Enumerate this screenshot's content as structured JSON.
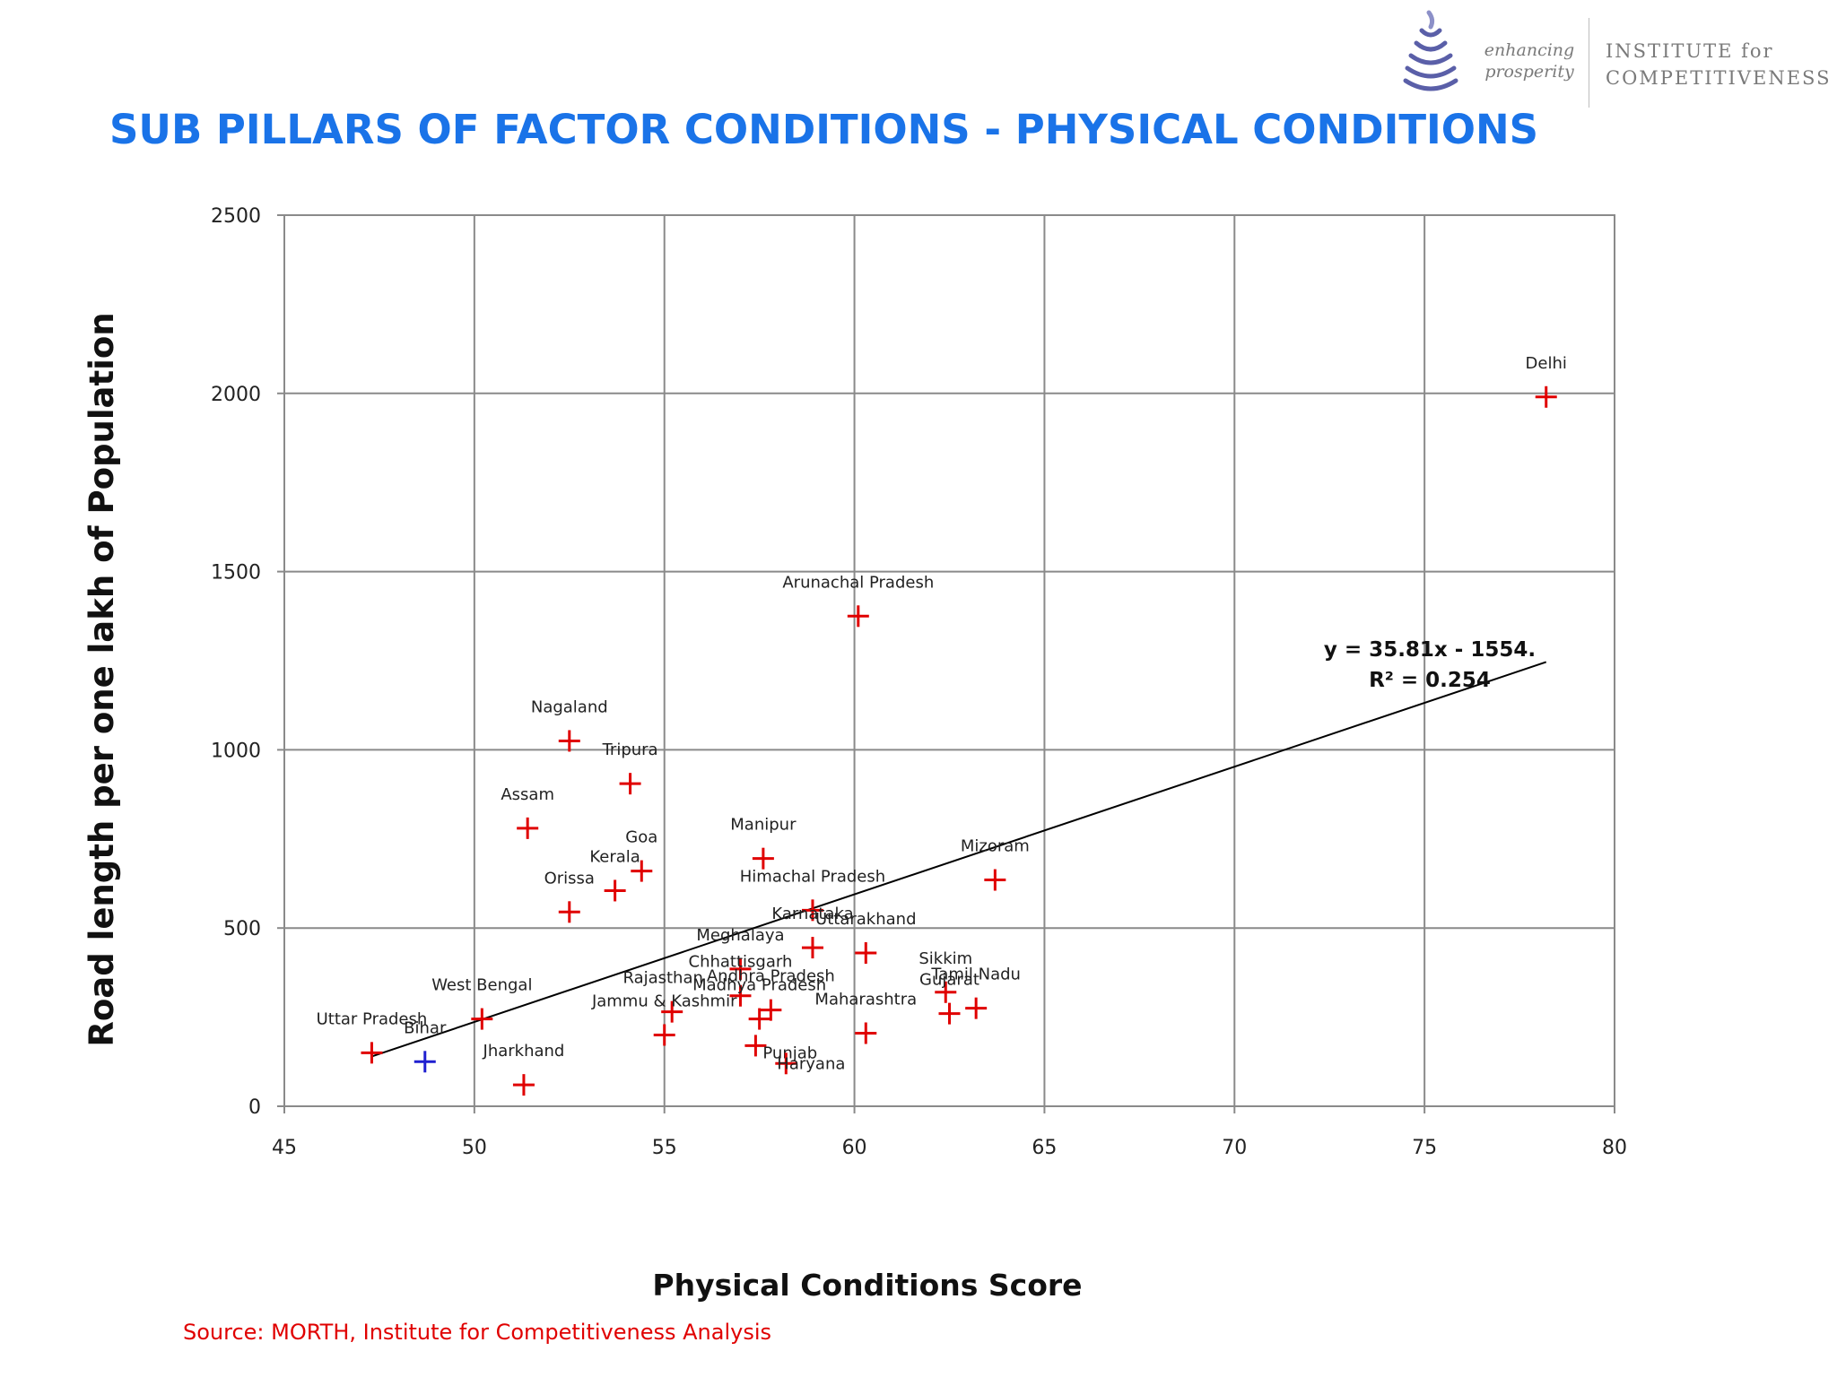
{
  "header": {
    "logo_tagline_line1": "enhancing",
    "logo_tagline_line2": "prosperity",
    "logo_name_line1": "INSTITUTE for",
    "logo_name_line2": "COMPETITIVENESS",
    "title": "SUB PILLARS OF FACTOR CONDITIONS - PHYSICAL CONDITIONS"
  },
  "chart_data": {
    "type": "scatter",
    "xlabel": "Physical Conditions Score",
    "ylabel": "Road length per one lakh of Population",
    "xlim": [
      45,
      80
    ],
    "ylim": [
      0,
      2500
    ],
    "xticks": [
      45,
      50,
      55,
      60,
      65,
      70,
      75,
      80
    ],
    "yticks": [
      0,
      500,
      1000,
      1500,
      2000,
      2500
    ],
    "grid": true,
    "marker": "plus",
    "colors": {
      "default": "#e00000",
      "highlight": "#1f1fd0"
    },
    "points": [
      {
        "label": "Delhi",
        "x": 78.2,
        "y": 1990
      },
      {
        "label": "Arunachal Pradesh",
        "x": 60.1,
        "y": 1375
      },
      {
        "label": "Nagaland",
        "x": 52.5,
        "y": 1025
      },
      {
        "label": "Tripura",
        "x": 54.1,
        "y": 905
      },
      {
        "label": "Assam",
        "x": 51.4,
        "y": 780
      },
      {
        "label": "Manipur",
        "x": 57.6,
        "y": 695
      },
      {
        "label": "Goa",
        "x": 54.4,
        "y": 660
      },
      {
        "label": "Mizoram",
        "x": 63.7,
        "y": 635
      },
      {
        "label": "Kerala",
        "x": 53.7,
        "y": 605
      },
      {
        "label": "Himachal Pradesh",
        "x": 58.9,
        "y": 550
      },
      {
        "label": "Orissa",
        "x": 52.5,
        "y": 545
      },
      {
        "label": "Karnataka",
        "x": 58.9,
        "y": 445
      },
      {
        "label": "Uttarakhand",
        "x": 60.3,
        "y": 430
      },
      {
        "label": "Meghalaya",
        "x": 57.0,
        "y": 385
      },
      {
        "label": "Sikkim",
        "x": 62.4,
        "y": 320
      },
      {
        "label": "Chhattisgarh",
        "x": 57.0,
        "y": 310
      },
      {
        "label": "Tamil Nadu",
        "x": 63.2,
        "y": 275
      },
      {
        "label": "Andhra Pradesh",
        "x": 57.8,
        "y": 270
      },
      {
        "label": "Rajasthan",
        "x": 55.2,
        "y": 265
      },
      {
        "label": "Gujarat",
        "x": 62.5,
        "y": 260
      },
      {
        "label": "Madhya Pradesh",
        "x": 57.5,
        "y": 245
      },
      {
        "label": "West Bengal",
        "x": 50.2,
        "y": 245
      },
      {
        "label": "Maharashtra",
        "x": 60.3,
        "y": 205
      },
      {
        "label": "Jammu & Kashmir",
        "x": 55.0,
        "y": 200
      },
      {
        "label": "Punjab",
        "x": 57.4,
        "y": 170
      },
      {
        "label": "Uttar Pradesh",
        "x": 47.3,
        "y": 150
      },
      {
        "label": "Bihar",
        "x": 48.7,
        "y": 125,
        "highlight": true
      },
      {
        "label": "Haryana",
        "x": 58.2,
        "y": 120
      },
      {
        "label": "Jharkhand",
        "x": 51.3,
        "y": 60
      }
    ],
    "trendline": {
      "slope": 35.81,
      "intercept": -1554,
      "x_range": [
        47.3,
        78.2
      ],
      "equation_text": "y = 35.81x - 1554.",
      "r2_text": "R² = 0.254"
    }
  },
  "footer": {
    "source": "Source: MORTH, Institute for Competitiveness Analysis"
  }
}
